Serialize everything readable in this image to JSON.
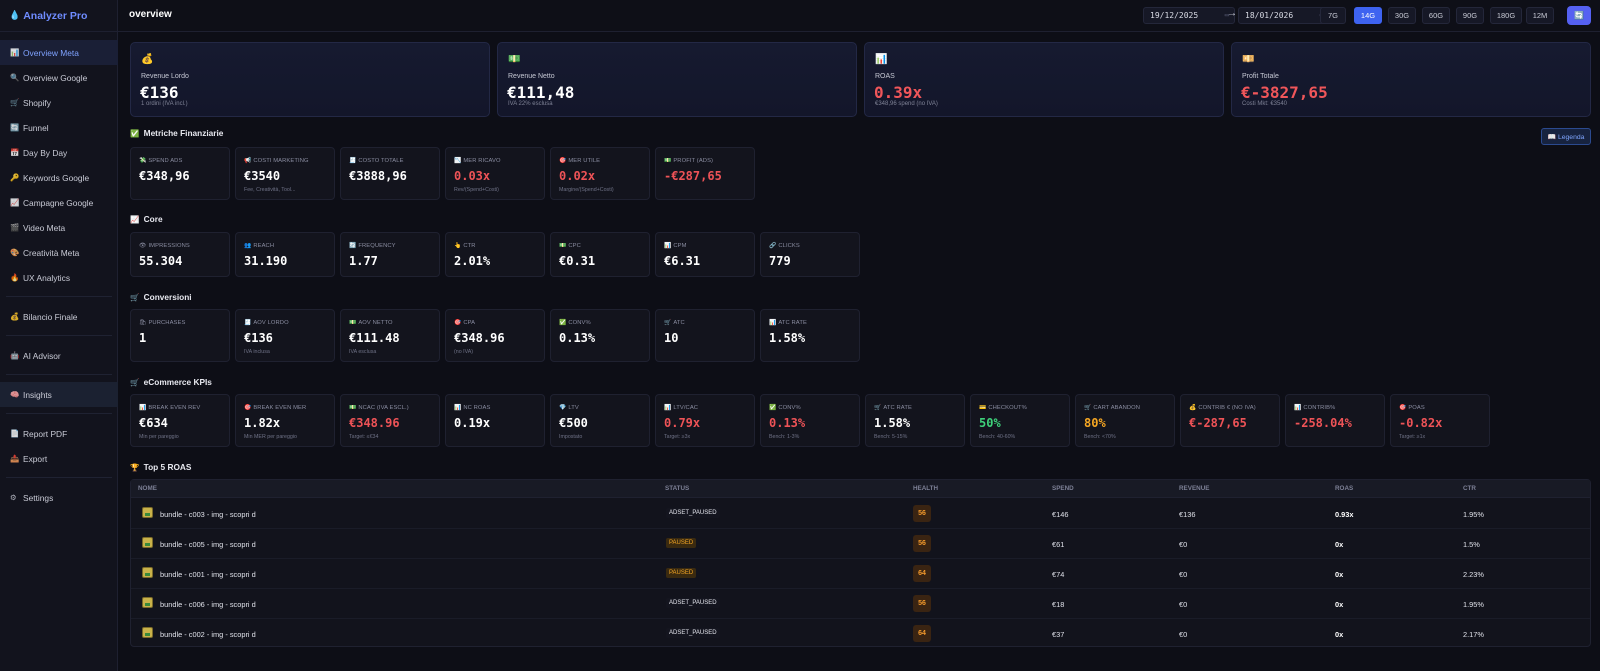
{
  "app": {
    "title": "Analyzer Pro",
    "logo_icon": "drop-icon"
  },
  "sidebar": {
    "items": [
      {
        "label": "Overview Meta",
        "icon": "📊",
        "active": true
      },
      {
        "label": "Overview Google",
        "icon": "🔍"
      },
      {
        "label": "Shopify",
        "icon": "🛒"
      },
      {
        "label": "Funnel",
        "icon": "🔄"
      },
      {
        "label": "Day By Day",
        "icon": "📅"
      },
      {
        "label": "Keywords Google",
        "icon": "🔑"
      },
      {
        "label": "Campagne Google",
        "icon": "📈"
      },
      {
        "label": "Video Meta",
        "icon": "🎬"
      },
      {
        "label": "Creatività Meta",
        "icon": "🎨"
      },
      {
        "label": "UX Analytics",
        "icon": "🔥"
      },
      {
        "label": "Bilancio Finale",
        "icon": "💰"
      },
      {
        "label": "AI Advisor",
        "icon": "🤖"
      },
      {
        "label": "Insights",
        "icon": "🧠",
        "highlight": true
      },
      {
        "label": "Report PDF",
        "icon": "📄"
      },
      {
        "label": "Export",
        "icon": "📤"
      },
      {
        "label": "Settings",
        "icon": "⚙"
      }
    ]
  },
  "header": {
    "title": "overview",
    "date_from": "19/12/2025",
    "date_to": "18/01/2026",
    "arrow": "→",
    "ranges": [
      "7G",
      "14G",
      "30G",
      "60G",
      "90G",
      "180G",
      "12M"
    ],
    "active_range": "14G",
    "refresh_icon": "🔄"
  },
  "hero_cards": [
    {
      "icon": "💰",
      "label": "Revenue Lordo",
      "value": "€136",
      "sub": "1 ordini (IVA incl.)",
      "negative": false
    },
    {
      "icon": "💵",
      "label": "Revenue Netto",
      "value": "€111,48",
      "sub": "IVA 22% esclusa",
      "negative": false
    },
    {
      "icon": "📊",
      "label": "ROAS",
      "value": "0.39x",
      "sub": "€348,96 spend (no IVA)",
      "negative": true
    },
    {
      "icon": "💴",
      "label": "Profit Totale",
      "value": "€-3827,65",
      "sub": "Costi Mkt: €3540",
      "negative": true
    }
  ],
  "legend_button": "📖 Legenda",
  "sections": {
    "financial": {
      "title": "Metriche Finanziarie",
      "icon": "✅",
      "cards": [
        {
          "icon": "💸",
          "label": "SPEND ADS",
          "value": "€348,96",
          "sub": ""
        },
        {
          "icon": "📢",
          "label": "COSTI MARKETING",
          "value": "€3540",
          "sub": "Fee, Creatività, Tool..."
        },
        {
          "icon": "🧾",
          "label": "COSTO TOTALE",
          "value": "€3888,96",
          "sub": ""
        },
        {
          "icon": "📉",
          "label": "MER RICAVO",
          "value": "0.03x",
          "sub": "Rev/(Spend+Costi)",
          "tone": "neg"
        },
        {
          "icon": "🎯",
          "label": "MER UTILE",
          "value": "0.02x",
          "sub": "Margine/(Spend+Costi)",
          "tone": "neg"
        },
        {
          "icon": "💵",
          "label": "PROFIT (ADS)",
          "value": "-€287,65",
          "sub": "",
          "tone": "neg"
        }
      ]
    },
    "core": {
      "title": "Core",
      "icon": "📈",
      "cards": [
        {
          "icon": "👁",
          "label": "IMPRESSIONS",
          "value": "55.304",
          "sub": ""
        },
        {
          "icon": "👥",
          "label": "REACH",
          "value": "31.190",
          "sub": ""
        },
        {
          "icon": "🔄",
          "label": "FREQUENCY",
          "value": "1.77",
          "sub": ""
        },
        {
          "icon": "👆",
          "label": "CTR",
          "value": "2.01%",
          "sub": ""
        },
        {
          "icon": "💵",
          "label": "CPC",
          "value": "€0.31",
          "sub": ""
        },
        {
          "icon": "📊",
          "label": "CPM",
          "value": "€6.31",
          "sub": ""
        },
        {
          "icon": "🔗",
          "label": "CLICKS",
          "value": "779",
          "sub": ""
        }
      ]
    },
    "conversions": {
      "title": "Conversioni",
      "icon": "🛒",
      "cards": [
        {
          "icon": "🛍",
          "label": "PURCHASES",
          "value": "1",
          "sub": ""
        },
        {
          "icon": "🧾",
          "label": "AOV LORDO",
          "value": "€136",
          "sub": "IVA inclusa"
        },
        {
          "icon": "💵",
          "label": "AOV NETTO",
          "value": "€111.48",
          "sub": "IVA esclusa"
        },
        {
          "icon": "🎯",
          "label": "CPA",
          "value": "€348.96",
          "sub": "(no IVA)"
        },
        {
          "icon": "✅",
          "label": "CONV%",
          "value": "0.13%",
          "sub": ""
        },
        {
          "icon": "🛒",
          "label": "ATC",
          "value": "10",
          "sub": ""
        },
        {
          "icon": "📊",
          "label": "ATC RATE",
          "value": "1.58%",
          "sub": ""
        }
      ]
    },
    "ecommerce": {
      "title": "eCommerce KPIs",
      "icon": "🛒",
      "cards": [
        {
          "icon": "📊",
          "label": "BREAK EVEN REV",
          "value": "€634",
          "sub": "Min per pareggio"
        },
        {
          "icon": "🎯",
          "label": "BREAK EVEN MER",
          "value": "1.82x",
          "sub": "Min MER per pareggio"
        },
        {
          "icon": "💵",
          "label": "NCAC (IVA ESCL.)",
          "value": "€348.96",
          "sub": "Target: ≤€34",
          "tone": "neg"
        },
        {
          "icon": "📊",
          "label": "NC ROAS",
          "value": "0.19x",
          "sub": ""
        },
        {
          "icon": "💎",
          "label": "LTV",
          "value": "€500",
          "sub": "Impostato"
        },
        {
          "icon": "📊",
          "label": "LTV/CAC",
          "value": "0.79x",
          "sub": "Target: ≥3x",
          "tone": "neg"
        },
        {
          "icon": "✅",
          "label": "CONV%",
          "value": "0.13%",
          "sub": "Bench: 1-3%",
          "tone": "neg"
        },
        {
          "icon": "🛒",
          "label": "ATC RATE",
          "value": "1.58%",
          "sub": "Bench: 5-15%"
        },
        {
          "icon": "💳",
          "label": "CHECKOUT%",
          "value": "50%",
          "sub": "Bench: 40-60%",
          "tone": "pos"
        },
        {
          "icon": "🛒",
          "label": "CART ABANDON",
          "value": "80%",
          "sub": "Bench: <70%",
          "tone": "warn"
        },
        {
          "icon": "💰",
          "label": "CONTRIB € (NO IVA)",
          "value": "€-287,65",
          "sub": "",
          "tone": "neg"
        },
        {
          "icon": "📊",
          "label": "CONTRIB%",
          "value": "-258.04%",
          "sub": "",
          "tone": "neg"
        },
        {
          "icon": "🎯",
          "label": "POAS",
          "value": "-0.82x",
          "sub": "Target: ≥1x",
          "tone": "neg"
        }
      ]
    },
    "top5": {
      "title": "Top 5 ROAS",
      "icon": "🏆",
      "columns": [
        "NOME",
        "STATUS",
        "HEALTH",
        "SPEND",
        "REVENUE",
        "ROAS",
        "CTR"
      ],
      "rows": [
        {
          "name": "bundle - c003 - img - scopri d",
          "status": "ADSET_PAUSED",
          "health": "56",
          "spend": "€146",
          "revenue": "€136",
          "roas": "0.93x",
          "ctr": "1.95%"
        },
        {
          "name": "bundle - c005 - img - scopri d",
          "status": "PAUSED",
          "health": "56",
          "spend": "€61",
          "revenue": "€0",
          "roas": "0x",
          "ctr": "1.5%"
        },
        {
          "name": "bundle - c001 - img - scopri d",
          "status": "PAUSED",
          "health": "64",
          "spend": "€74",
          "revenue": "€0",
          "roas": "0x",
          "ctr": "2.23%"
        },
        {
          "name": "bundle - c006 - img - scopri d",
          "status": "ADSET_PAUSED",
          "health": "56",
          "spend": "€18",
          "revenue": "€0",
          "roas": "0x",
          "ctr": "1.95%"
        },
        {
          "name": "bundle - c002 - img - scopri d",
          "status": "ADSET_PAUSED",
          "health": "64",
          "spend": "€37",
          "revenue": "€0",
          "roas": "0x",
          "ctr": "2.17%"
        }
      ]
    }
  }
}
